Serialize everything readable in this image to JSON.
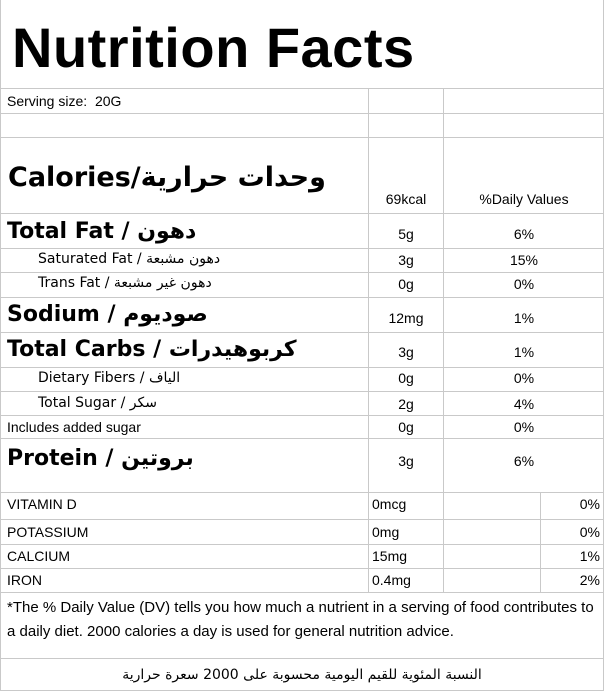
{
  "title": "Nutrition Facts",
  "serving": {
    "label": "Serving size:",
    "value": "20G"
  },
  "calories": {
    "label": "Calories/وحدات حرارية",
    "amount": "69kcal",
    "dv_header": "%Daily Values"
  },
  "nutrients": [
    {
      "label": "Total Fat / دهون",
      "amount": "5g",
      "dv": "6%"
    },
    {
      "label": "Saturated Fat / دهون مشبعة",
      "amount": "3g",
      "dv": "15%"
    },
    {
      "label": "Trans Fat / دهون غير مشبعة",
      "amount": "0g",
      "dv": "0%"
    },
    {
      "label": "Sodium / صوديوم",
      "amount": "12mg",
      "dv": "1%"
    },
    {
      "label": "Total Carbs / كربوهيدرات",
      "amount": "3g",
      "dv": "1%"
    },
    {
      "label": "Dietary Fibers / الياف",
      "amount": "0g",
      "dv": "0%"
    },
    {
      "label": "Total Sugar / سكر",
      "amount": "2g",
      "dv": "4%"
    },
    {
      "label": "Includes added sugar",
      "amount": "0g",
      "dv": "0%"
    },
    {
      "label": "Protein / بروتين",
      "amount": "3g",
      "dv": "6%"
    }
  ],
  "vitamins": [
    {
      "label": "VITAMIN D",
      "amount": "0mcg",
      "dv": "0%"
    },
    {
      "label": "POTASSIUM",
      "amount": "0mg",
      "dv": "0%"
    },
    {
      "label": "CALCIUM",
      "amount": "15mg",
      "dv": "1%"
    },
    {
      "label": "IRON",
      "amount": "0.4mg",
      "dv": "2%"
    }
  ],
  "footnote": "*The % Daily Value (DV) tells you how much a nutrient in a serving of food contributes to a daily diet. 2000 calories a day is used for general nutrition advice.",
  "footnote_arabic": "النسبة المئوية للقيم اليومية محسوبة على 2000 سعرة حرارية"
}
